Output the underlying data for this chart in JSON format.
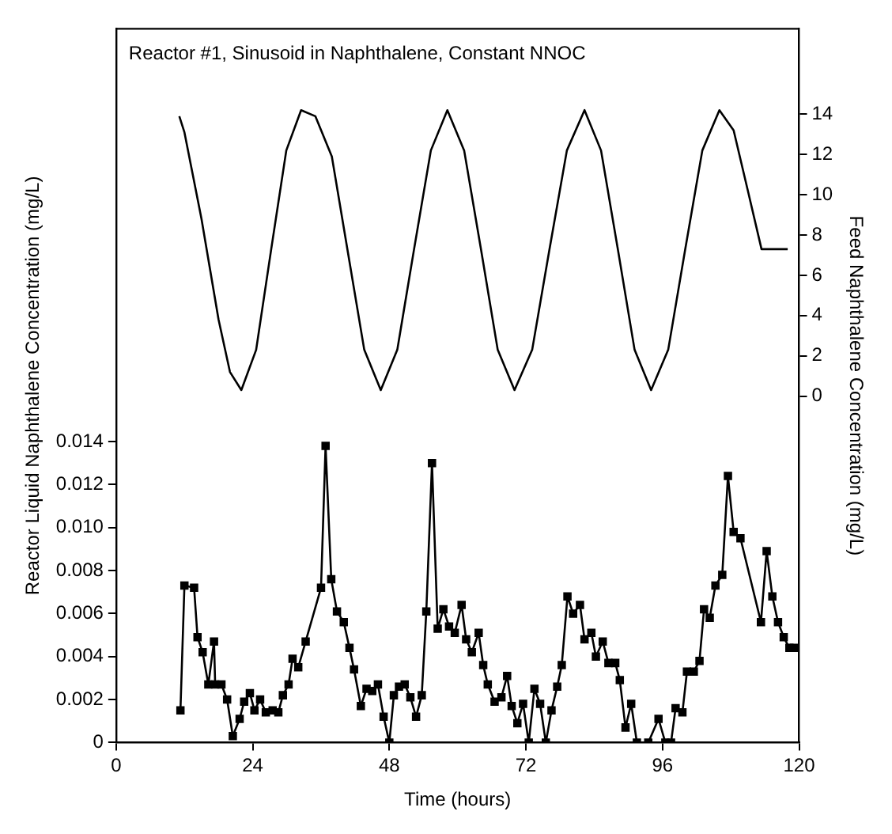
{
  "chart_data": {
    "type": "line",
    "title": "Reactor #1, Sinusoid in Naphthalene, Constant NNOC",
    "xlabel": "Time (hours)",
    "ylabel": "Reactor Liquid Naphthalene Concentration (mg/L)",
    "y2label": "Feed Naphthalene Concentration (mg/L)",
    "xlim": [
      0,
      120
    ],
    "xticks": [
      0,
      24,
      48,
      72,
      96,
      120
    ],
    "ylim": [
      0,
      0.0332
    ],
    "yticks": [
      0,
      0.002,
      0.004,
      0.006,
      0.008,
      {
        "value": 0.01,
        "label": "0.010"
      },
      0.012,
      0.014
    ],
    "y2lim": [
      -17.2,
      18.24
    ],
    "y2ticks": [
      0,
      2,
      4,
      6,
      8,
      10,
      12,
      14
    ],
    "grid": false,
    "legend": false,
    "series": [
      {
        "color": "#000000",
        "marker": "none",
        "axis": "y2",
        "x": [
          11.1,
          12,
          15,
          18,
          20,
          22,
          24.6,
          27.25,
          29.9,
          32.5,
          35,
          37.9,
          40.75,
          43.6,
          46.5,
          49.4,
          52.35,
          55.3,
          58.2,
          61.15,
          64.1,
          67.05,
          70,
          73.1,
          76.15,
          79.2,
          82.3,
          85.2,
          88.15,
          91.1,
          94,
          97,
          100,
          103,
          106,
          108.5,
          111,
          113.4,
          118
        ],
        "values": [
          13.9,
          13.1,
          8.8,
          3.8,
          1.2,
          0.3,
          2.3,
          7.3,
          12.2,
          14.2,
          13.9,
          11.9,
          7.1,
          2.3,
          0.3,
          2.3,
          7.3,
          12.2,
          14.2,
          12.2,
          7.3,
          2.3,
          0.3,
          2.3,
          7.3,
          12.2,
          14.2,
          12.2,
          7.3,
          2.3,
          0.3,
          2.3,
          7.3,
          12.2,
          14.2,
          13.2,
          10.2,
          7.3,
          7.3
        ]
      },
      {
        "color": "#000000",
        "marker": "square",
        "axis": "y",
        "x": [
          11.3,
          12.0,
          13.7,
          14.3,
          15.2,
          16.2,
          17.2,
          17.4,
          18.5,
          19.5,
          20.5,
          21.7,
          22.5,
          23.5,
          24.3,
          25.3,
          26.3,
          27.5,
          28.5,
          29.3,
          30.3,
          31.0,
          32.0,
          33.3,
          36.0,
          36.8,
          37.8,
          38.8,
          40.0,
          41.0,
          41.8,
          43.0,
          44.0,
          45.0,
          46.0,
          47.0,
          48.0,
          48.8,
          49.7,
          50.7,
          51.7,
          52.7,
          53.7,
          54.5,
          55.5,
          56.5,
          57.5,
          58.5,
          59.5,
          60.7,
          61.5,
          62.5,
          63.7,
          64.5,
          65.3,
          66.5,
          67.7,
          68.7,
          69.5,
          70.5,
          71.5,
          72.5,
          73.5,
          74.5,
          75.5,
          76.5,
          77.5,
          78.3,
          79.3,
          80.3,
          81.5,
          82.3,
          83.5,
          84.3,
          85.5,
          86.5,
          87.7,
          88.5,
          89.5,
          90.5,
          91.5,
          93.5,
          95.3,
          96.5,
          97.5,
          98.3,
          99.5,
          100.3,
          101.5,
          102.5,
          103.3,
          104.3,
          105.3,
          106.5,
          107.5,
          108.5,
          109.7,
          113.3,
          114.3,
          115.3,
          116.3,
          117.3,
          118.3,
          119.1
        ],
        "values": [
          0.0015,
          0.0073,
          0.0072,
          0.0049,
          0.0042,
          0.0027,
          0.0047,
          0.0027,
          0.0027,
          0.002,
          0.0003,
          0.0011,
          0.0019,
          0.0023,
          0.0015,
          0.002,
          0.0014,
          0.0015,
          0.0014,
          0.0022,
          0.0027,
          0.0039,
          0.0035,
          0.0047,
          0.0072,
          0.0138,
          0.0076,
          0.0061,
          0.0056,
          0.0044,
          0.0034,
          0.0017,
          0.0025,
          0.0024,
          0.0027,
          0.0012,
          0,
          0.0022,
          0.0026,
          0.0027,
          0.0021,
          0.0012,
          0.0022,
          0.0061,
          0.013,
          0.0053,
          0.0062,
          0.0054,
          0.0051,
          0.0064,
          0.0048,
          0.0042,
          0.0051,
          0.0036,
          0.0027,
          0.0019,
          0.0021,
          0.0031,
          0.0017,
          0.0009,
          0.0018,
          0,
          0.0025,
          0.0018,
          0,
          0.0015,
          0.0026,
          0.0036,
          0.0068,
          0.006,
          0.0064,
          0.0048,
          0.0051,
          0.004,
          0.0047,
          0.0037,
          0.0037,
          0.0029,
          0.0007,
          0.0018,
          0,
          0,
          0.0011,
          0,
          0,
          0.0016,
          0.0014,
          0.0033,
          0.0033,
          0.0038,
          0.0062,
          0.0058,
          0.0073,
          0.0078,
          0.0124,
          0.0098,
          0.0095,
          0.0056,
          0.0089,
          0.0068,
          0.0056,
          0.0049,
          0.0044,
          0.0044
        ]
      }
    ]
  }
}
